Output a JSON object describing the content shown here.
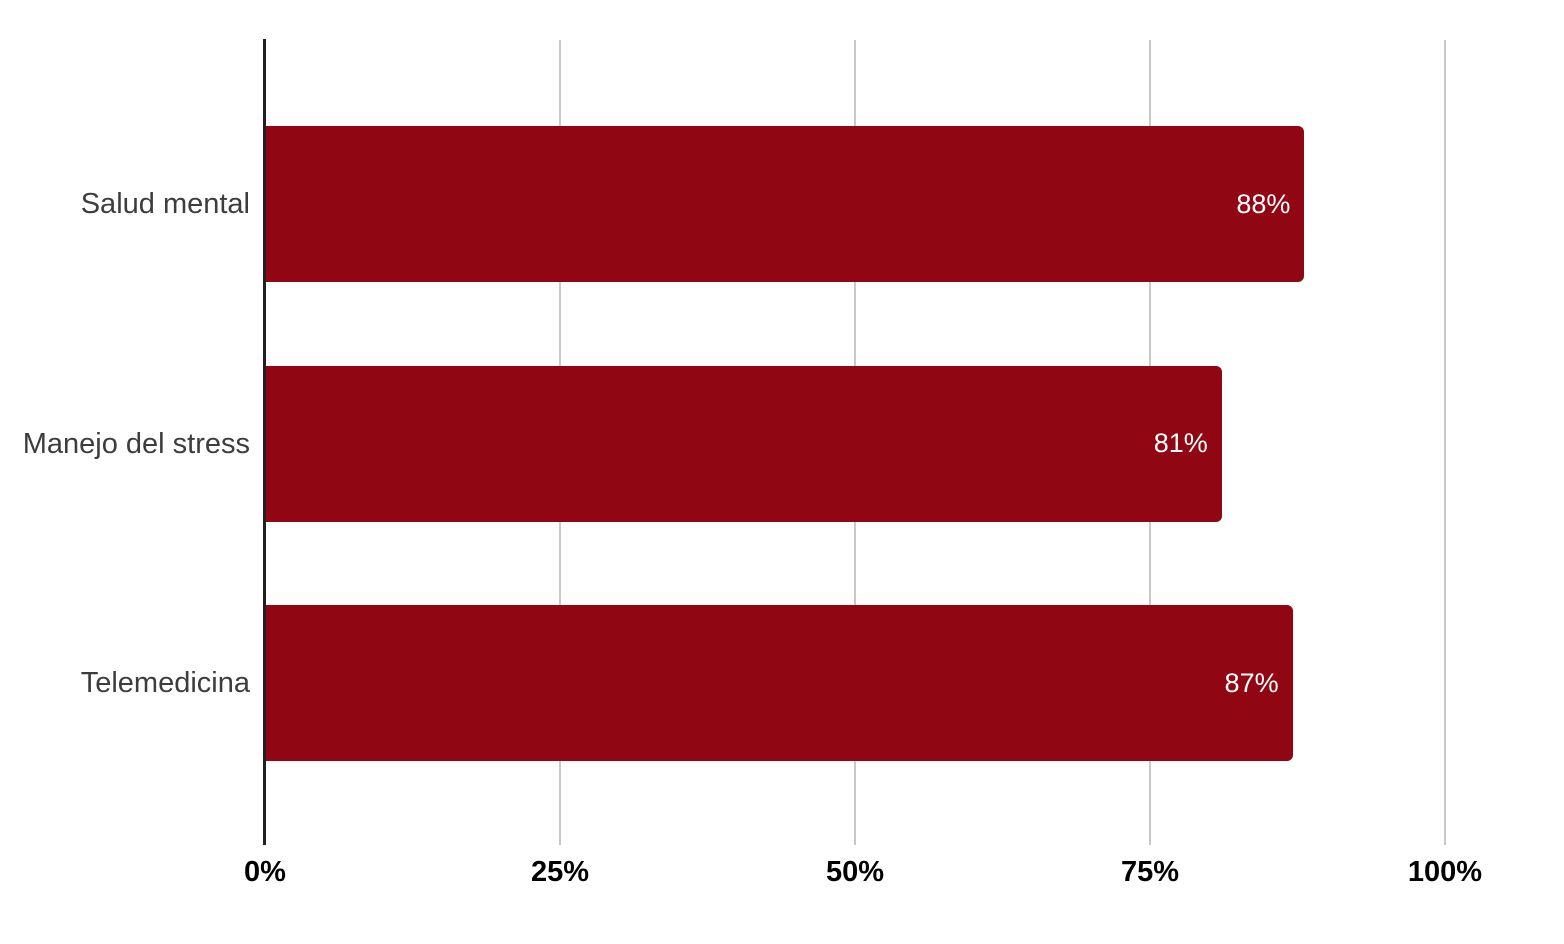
{
  "chart_data": {
    "type": "bar",
    "orientation": "horizontal",
    "title": "",
    "categories": [
      "Salud mental",
      "Manejo del stress",
      "Telemedicina"
    ],
    "values": [
      88,
      81,
      87
    ],
    "value_labels": [
      "88%",
      "81%",
      "87%"
    ],
    "x_tick_values": [
      0,
      25,
      50,
      75,
      100
    ],
    "x_tick_labels": [
      "0%",
      "25%",
      "50%",
      "75%",
      "100%"
    ],
    "xlabel": "",
    "ylabel": "",
    "xlim": [
      0,
      100
    ],
    "grid": true,
    "legend_position": "none",
    "colors": {
      "bar": "#900613",
      "value_label": "#ffffff",
      "category_label": "#3d3d3d",
      "tick_label": "#000000",
      "axis_line": "#212121",
      "gridline": "#c9c9c9",
      "background": "#ffffff"
    }
  }
}
